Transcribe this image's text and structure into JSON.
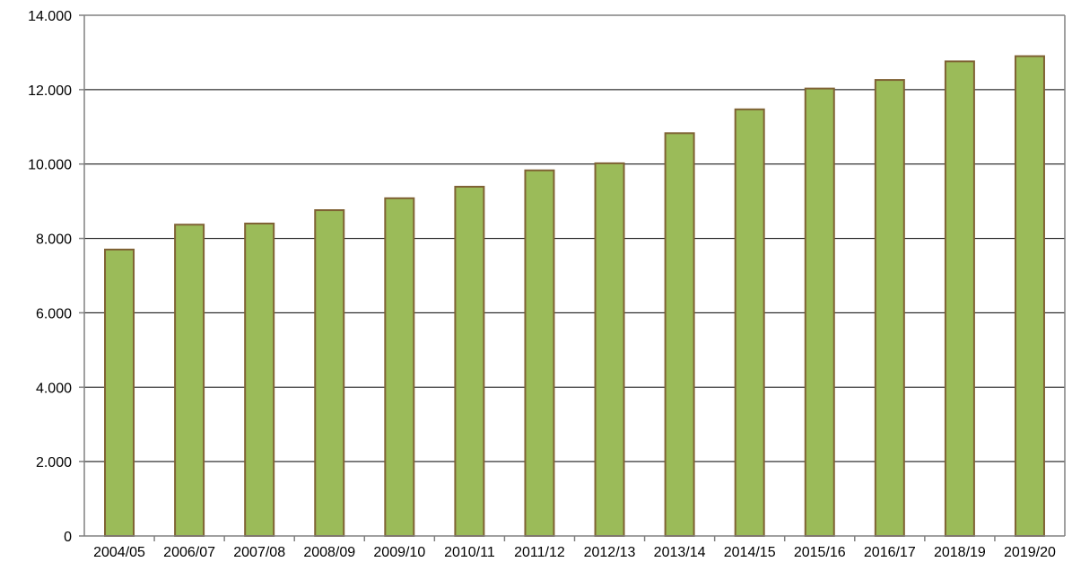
{
  "chart_data": {
    "type": "bar",
    "title": "",
    "xlabel": "",
    "ylabel": "",
    "categories": [
      "2004/05",
      "2006/07",
      "2007/08",
      "2008/09",
      "2009/10",
      "2010/11",
      "2011/12",
      "2012/13",
      "2013/14",
      "2014/15",
      "2015/16",
      "2016/17",
      "2018/19",
      "2019/20"
    ],
    "values": [
      7700,
      8370,
      8400,
      8760,
      9080,
      9390,
      9830,
      10020,
      10830,
      11470,
      12030,
      12260,
      12760,
      12900
    ],
    "ylim": [
      0,
      14000
    ],
    "yticks": [
      0,
      2000,
      4000,
      6000,
      8000,
      10000,
      12000,
      14000
    ],
    "ytick_labels": [
      "0",
      "2.000",
      "4.000",
      "6.000",
      "8.000",
      "10.000",
      "12.000",
      "14.000"
    ],
    "grid": true,
    "legend": "none",
    "colors": {
      "bar_fill": "#9BBB59",
      "bar_stroke": "#7F6234",
      "axis": "#808080",
      "grid": "#000000"
    }
  }
}
